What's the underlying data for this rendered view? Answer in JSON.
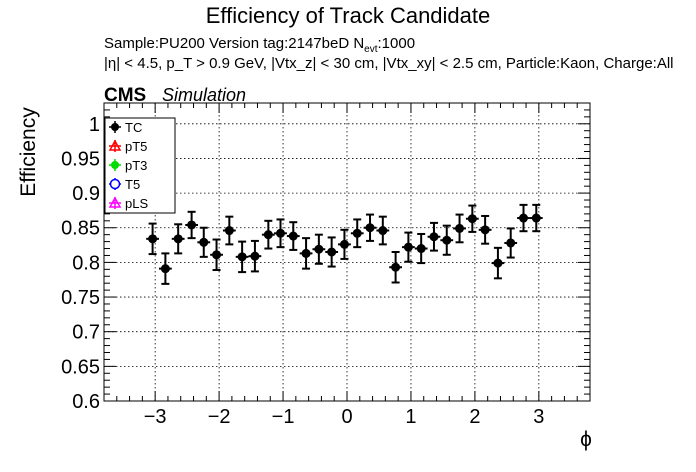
{
  "chart_data": {
    "type": "scatter",
    "title": "Efficiency of Track Candidate",
    "info_line1": {
      "prefix": "Sample:PU200   Version tag:2147beD  N",
      "sub": "evt",
      "suffix": ":1000"
    },
    "info_line2": "|η| < 4.5, p_T > 0.9 GeV, |Vtx_z| < 30 cm, |Vtx_xy| < 2.5 cm, Particle:Kaon, Charge:All",
    "cms_label": "CMS",
    "simulation_label": "Simulation",
    "xlabel": "ϕ",
    "ylabel": "Efficiency",
    "xlim": [
      -3.8,
      3.8
    ],
    "ylim": [
      0.6,
      1.03
    ],
    "x_ticks": [
      -3,
      -2,
      -1,
      0,
      1,
      2,
      3
    ],
    "x_tick_labels": [
      "−3",
      "−2",
      "−1",
      "0",
      "1",
      "2",
      "3"
    ],
    "y_ticks": [
      0.6,
      0.65,
      0.7,
      0.75,
      0.8,
      0.85,
      0.9,
      0.95,
      1.0
    ],
    "y_tick_labels": [
      "0.6",
      "0.65",
      "0.7",
      "0.75",
      "0.8",
      "0.85",
      "0.9",
      "0.95",
      "1"
    ],
    "grid": true,
    "legend_position": "top-left",
    "legend": [
      {
        "name": "TC",
        "color": "#000000",
        "marker": "filled-circle"
      },
      {
        "name": "pT5",
        "color": "#ff0000",
        "marker": "open-triangle"
      },
      {
        "name": "pT3",
        "color": "#00dd00",
        "marker": "filled-circle"
      },
      {
        "name": "T5",
        "color": "#0000ff",
        "marker": "open-circle"
      },
      {
        "name": "pLS",
        "color": "#ff00ff",
        "marker": "open-triangle"
      }
    ],
    "series": [
      {
        "name": "TC",
        "color": "#000000",
        "x": [
          -3.04,
          -2.84,
          -2.64,
          -2.43,
          -2.24,
          -2.04,
          -1.84,
          -1.64,
          -1.44,
          -1.23,
          -1.04,
          -0.84,
          -0.64,
          -0.44,
          -0.24,
          -0.04,
          0.16,
          0.36,
          0.56,
          0.76,
          0.96,
          1.16,
          1.36,
          1.56,
          1.76,
          1.96,
          2.16,
          2.36,
          2.56,
          2.76,
          2.96
        ],
        "y": [
          0.834,
          0.791,
          0.834,
          0.854,
          0.829,
          0.811,
          0.846,
          0.808,
          0.809,
          0.84,
          0.842,
          0.838,
          0.813,
          0.819,
          0.815,
          0.826,
          0.842,
          0.85,
          0.846,
          0.793,
          0.822,
          0.82,
          0.837,
          0.832,
          0.849,
          0.863,
          0.847,
          0.799,
          0.828,
          0.864,
          0.864
        ],
        "yerr": [
          0.022,
          0.022,
          0.021,
          0.019,
          0.021,
          0.022,
          0.02,
          0.022,
          0.022,
          0.02,
          0.02,
          0.02,
          0.022,
          0.021,
          0.021,
          0.021,
          0.02,
          0.019,
          0.02,
          0.022,
          0.021,
          0.021,
          0.02,
          0.021,
          0.02,
          0.019,
          0.02,
          0.022,
          0.021,
          0.019,
          0.019
        ],
        "xerr": 0.1
      }
    ]
  }
}
